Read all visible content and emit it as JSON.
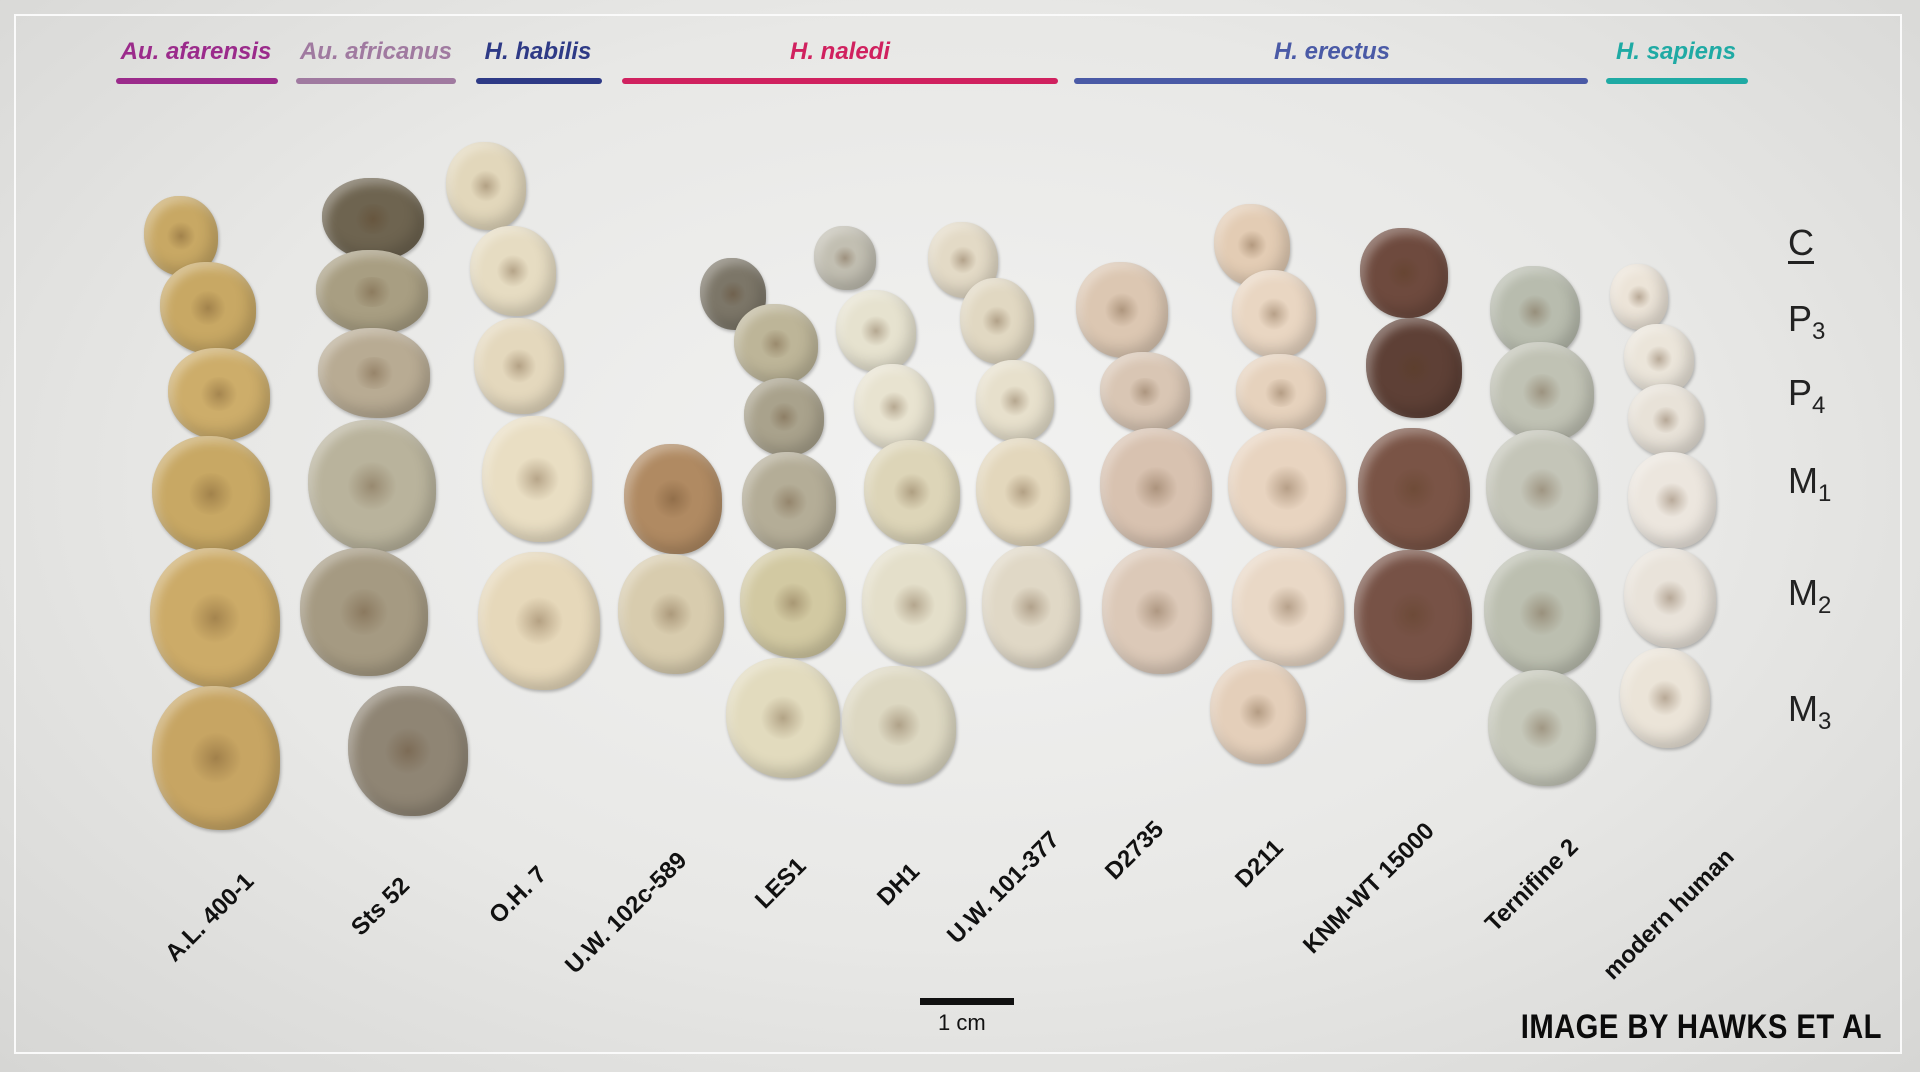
{
  "species": [
    {
      "name": "Au. afarensis",
      "color": "#9b2b8b"
    },
    {
      "name": "Au. africanus",
      "color": "#a07aa0"
    },
    {
      "name": "H. habilis",
      "color": "#2e3a86"
    },
    {
      "name": "H. naledi",
      "color": "#d0215f"
    },
    {
      "name": "H. erectus",
      "color": "#4a5aa6"
    },
    {
      "name": "H. sapiens",
      "color": "#1faaa4"
    }
  ],
  "specimens": [
    "A.L. 400-1",
    "Sts 52",
    "O.H. 7",
    "U.W. 102c-589",
    "LES1",
    "DH1",
    "U.W. 101-377",
    "D2735",
    "D211",
    "KNM-WT 15000",
    "Ternifine 2",
    "modern human"
  ],
  "tooth_labels": {
    "c": "C",
    "p3": "P",
    "p3_sub": "3",
    "p4": "P",
    "p4_sub": "4",
    "m1": "M",
    "m1_sub": "1",
    "m2": "M",
    "m2_sub": "2",
    "m3": "M",
    "m3_sub": "3"
  },
  "scale": {
    "label": "1 cm"
  },
  "credit": "IMAGE BY HAWKS ET AL",
  "tooth_colors": [
    "#c8a864",
    "#b8ab93",
    "#e6dcc2",
    "#b08a62",
    "#cfc7a6",
    "#ddd8c2",
    "#d9cfb8",
    "#d8c2b0",
    "#e6d2bd",
    "#7a5446",
    "#c0c2b4",
    "#e8e2d8"
  ]
}
